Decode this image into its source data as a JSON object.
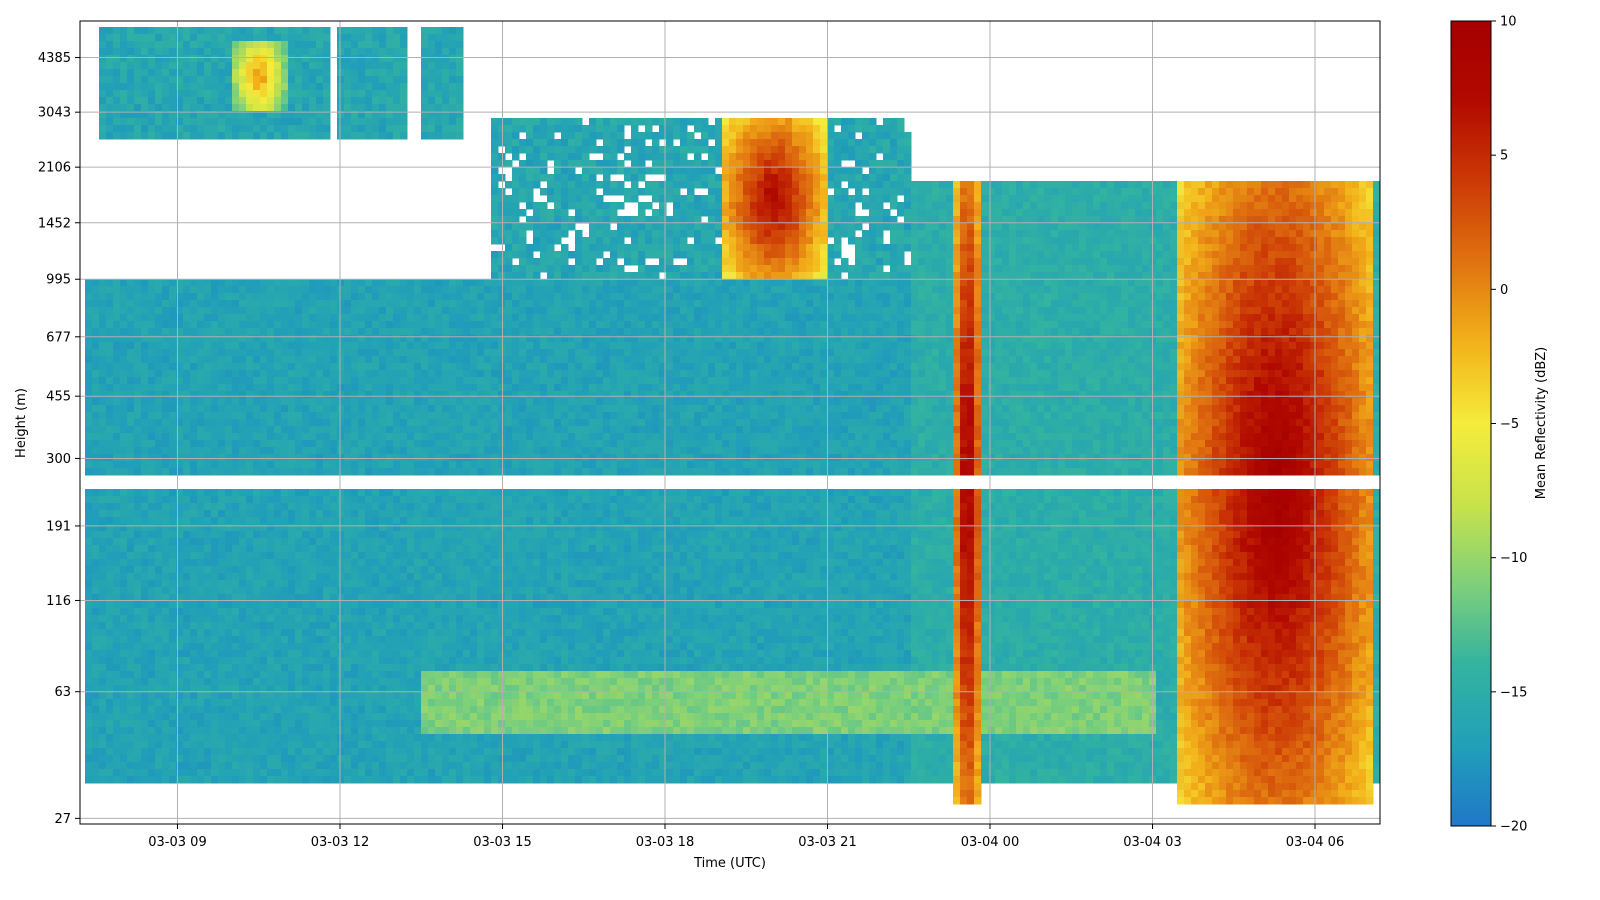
{
  "chart_data": {
    "type": "heatmap",
    "title": "",
    "xlabel": "Time (UTC)",
    "ylabel": "Height (m)",
    "x_axis": {
      "type": "time",
      "range_hours_utc": [
        "2024-03-03 07:12",
        "2024-03-04 07:12"
      ],
      "ticks": [
        {
          "label": "03-03 09",
          "time": "03-03 09:00"
        },
        {
          "label": "03-03 12",
          "time": "03-03 12:00"
        },
        {
          "label": "03-03 15",
          "time": "03-03 15:00"
        },
        {
          "label": "03-03 18",
          "time": "03-03 18:00"
        },
        {
          "label": "03-03 21",
          "time": "03-03 21:00"
        },
        {
          "label": "03-04 00",
          "time": "03-04 00:00"
        },
        {
          "label": "03-04 03",
          "time": "03-04 03:00"
        },
        {
          "label": "03-04 06",
          "time": "03-04 06:00"
        }
      ]
    },
    "y_axis": {
      "type": "log",
      "range_m": [
        26,
        5600
      ],
      "ticks": [
        27,
        63,
        116,
        191,
        300,
        455,
        677,
        995,
        1452,
        2106,
        3043,
        4385
      ]
    },
    "colorbar": {
      "label": "Mean Reflectivity (dBZ)",
      "range": [
        -20,
        10
      ],
      "ticks": [
        10,
        5,
        0,
        -5,
        -10,
        -15,
        -20
      ],
      "colors": [
        "#1f78c8",
        "#21a0b8",
        "#33b3a0",
        "#7ed07a",
        "#c8e34a",
        "#f5ec3c",
        "#f2b21a",
        "#e07310",
        "#cc3a06",
        "#b20a00",
        "#a50000"
      ]
    },
    "grid": true,
    "gap_band_m": [
      250,
      270
    ],
    "features": [
      {
        "desc": "stratiform precipitation core",
        "time_start": "03-04 03:30",
        "time_end": "03-04 07:05",
        "height_m": [
          30,
          1900
        ],
        "dBZ_peak": 10
      },
      {
        "desc": "rain shaft",
        "time_start": "03-03 23:20",
        "time_end": "03-03 23:50",
        "height_m": [
          30,
          1900
        ],
        "dBZ_peak": 10
      },
      {
        "desc": "convective cell aloft",
        "time_start": "03-03 19:00",
        "time_end": "03-03 21:00",
        "height_m": [
          1000,
          2900
        ],
        "dBZ_peak": 8
      },
      {
        "desc": "elevated cell",
        "time_start": "03-03 10:00",
        "time_end": "03-03 11:00",
        "height_m": [
          3000,
          5000
        ],
        "dBZ_peak": 0
      },
      {
        "desc": "clear-air background",
        "time_start": "03-03 07:20",
        "time_end": "03-03 22:30",
        "height_m": [
          35,
          1000
        ],
        "dBZ_peak": -16
      }
    ]
  }
}
